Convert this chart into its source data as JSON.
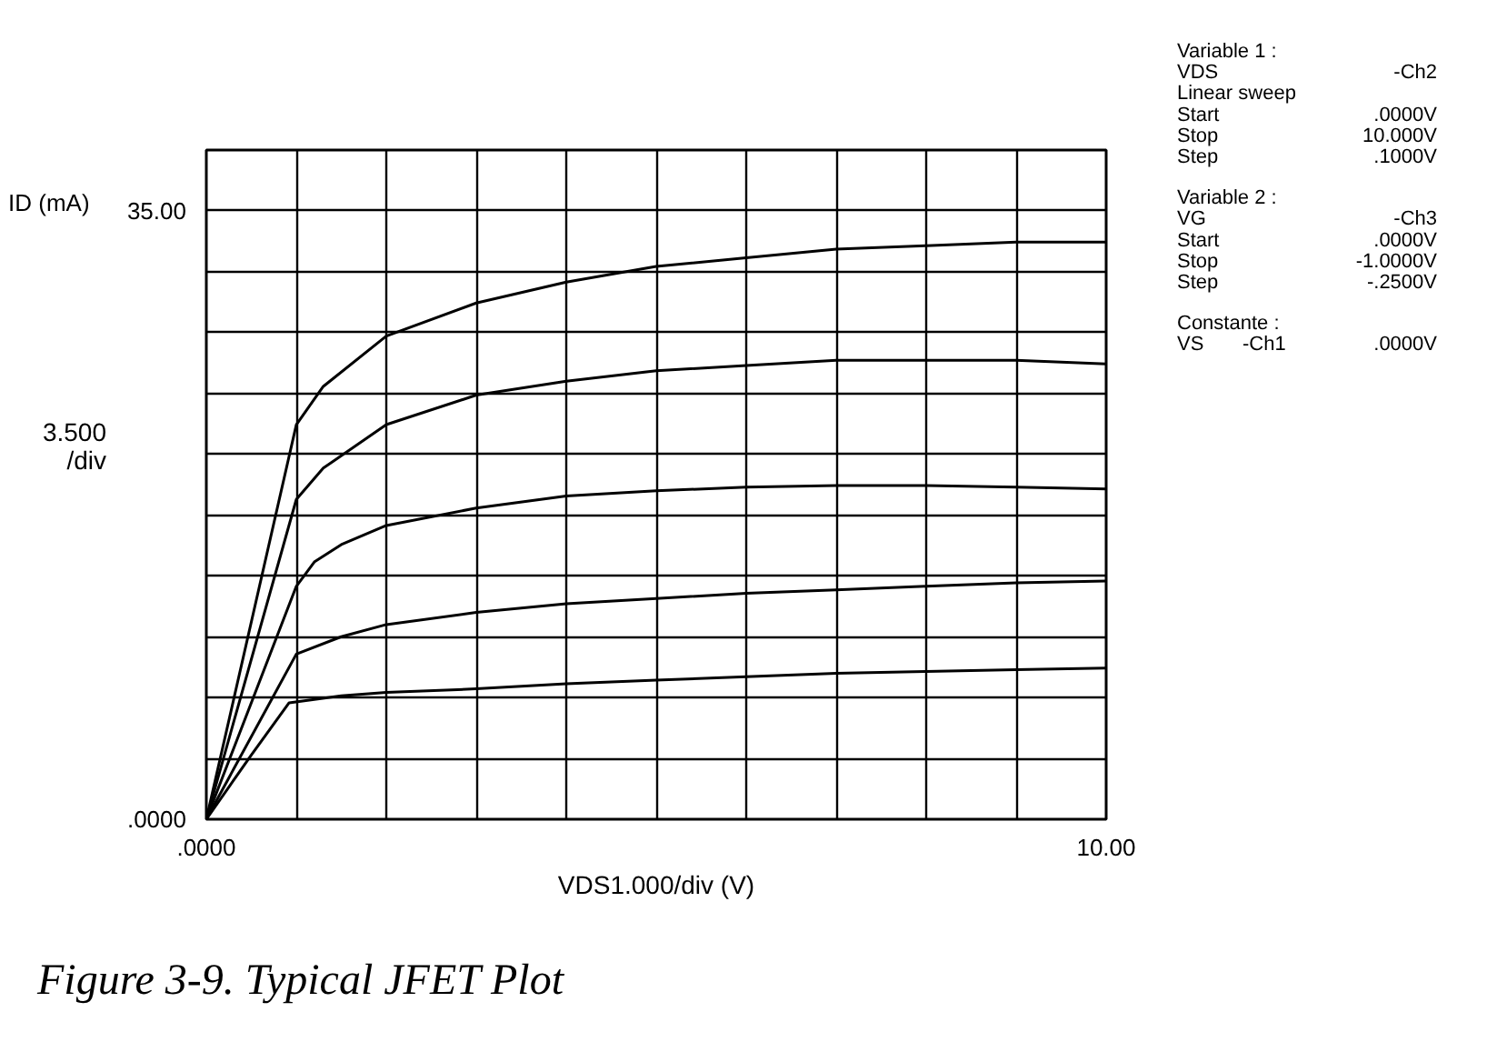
{
  "chart_data": {
    "type": "line",
    "title": "Figure 3-9.   Typical JFET Plot",
    "xlabel": "VDS1.000/div (V)",
    "ylabel": "ID (mA)",
    "xlim": [
      0,
      10
    ],
    "ylim": [
      0,
      38.5
    ],
    "xticks": [
      {
        "value": 0,
        "label": ".0000"
      },
      {
        "value": 1,
        "label": null
      },
      {
        "value": 2,
        "label": null
      },
      {
        "value": 3,
        "label": null
      },
      {
        "value": 4,
        "label": null
      },
      {
        "value": 5,
        "label": null
      },
      {
        "value": 6,
        "label": null
      },
      {
        "value": 7,
        "label": null
      },
      {
        "value": 8,
        "label": null
      },
      {
        "value": 9,
        "label": null
      },
      {
        "value": 10,
        "label": "10.00"
      }
    ],
    "yticks": [
      {
        "value": 0,
        "label": ".0000"
      },
      {
        "value": 3.5,
        "label": null
      },
      {
        "value": 7,
        "label": null
      },
      {
        "value": 10.5,
        "label": null
      },
      {
        "value": 14,
        "label": null
      },
      {
        "value": 17.5,
        "label": null
      },
      {
        "value": 21,
        "label": null
      },
      {
        "value": 24.5,
        "label": null
      },
      {
        "value": 28,
        "label": null
      },
      {
        "value": 31.5,
        "label": null
      },
      {
        "value": 35,
        "label": "35.00"
      }
    ],
    "grid": true,
    "marker": "none",
    "line_style": "solid",
    "series": [
      {
        "color": "#000000",
        "x": [
          0,
          1,
          1.3,
          2,
          3,
          4,
          5,
          6,
          7,
          8,
          9,
          10
        ],
        "values": [
          0,
          22.7,
          24.9,
          27.8,
          29.7,
          30.9,
          31.8,
          32.3,
          32.8,
          33.0,
          33.2,
          33.2
        ]
      },
      {
        "color": "#000000",
        "x": [
          0,
          1,
          1.3,
          2,
          3,
          4,
          5,
          6,
          7,
          8,
          9,
          10
        ],
        "values": [
          0,
          18.4,
          20.2,
          22.7,
          24.4,
          25.2,
          25.8,
          26.1,
          26.4,
          26.4,
          26.4,
          26.2
        ]
      },
      {
        "color": "#000000",
        "x": [
          0,
          1,
          1.2,
          1.5,
          2,
          3,
          4,
          5,
          6,
          7,
          8,
          9,
          10
        ],
        "values": [
          0,
          13.4,
          14.8,
          15.8,
          16.9,
          17.9,
          18.6,
          18.9,
          19.1,
          19.2,
          19.2,
          19.1,
          19.0
        ]
      },
      {
        "color": "#000000",
        "x": [
          0,
          1,
          1.5,
          2,
          3,
          4,
          5,
          6,
          7,
          8,
          9,
          10
        ],
        "values": [
          0,
          9.5,
          10.5,
          11.2,
          11.9,
          12.4,
          12.7,
          13.0,
          13.2,
          13.4,
          13.6,
          13.7
        ]
      },
      {
        "color": "#000000",
        "x": [
          0,
          0.5,
          0.92,
          1.5,
          2,
          3,
          4,
          5,
          6,
          7,
          8,
          9,
          10
        ],
        "values": [
          0,
          3.7,
          6.7,
          7.1,
          7.3,
          7.5,
          7.8,
          8.0,
          8.2,
          8.4,
          8.5,
          8.6,
          8.7
        ]
      }
    ],
    "annotations": [
      "3.500\n/div",
      "Variable 1 :",
      " VDS\t-Ch2",
      " Linear  sweep",
      " Start\t.0000V",
      " Stop\t10.000V",
      " Step\t.1000V",
      "Variable 2 :",
      " VG\t-Ch3",
      " Start\t.0000V",
      " Stop\t-1.0000V",
      " Step\t-.2500V",
      "Constante :",
      " VS\t-Ch1\t.0000V"
    ]
  }
}
